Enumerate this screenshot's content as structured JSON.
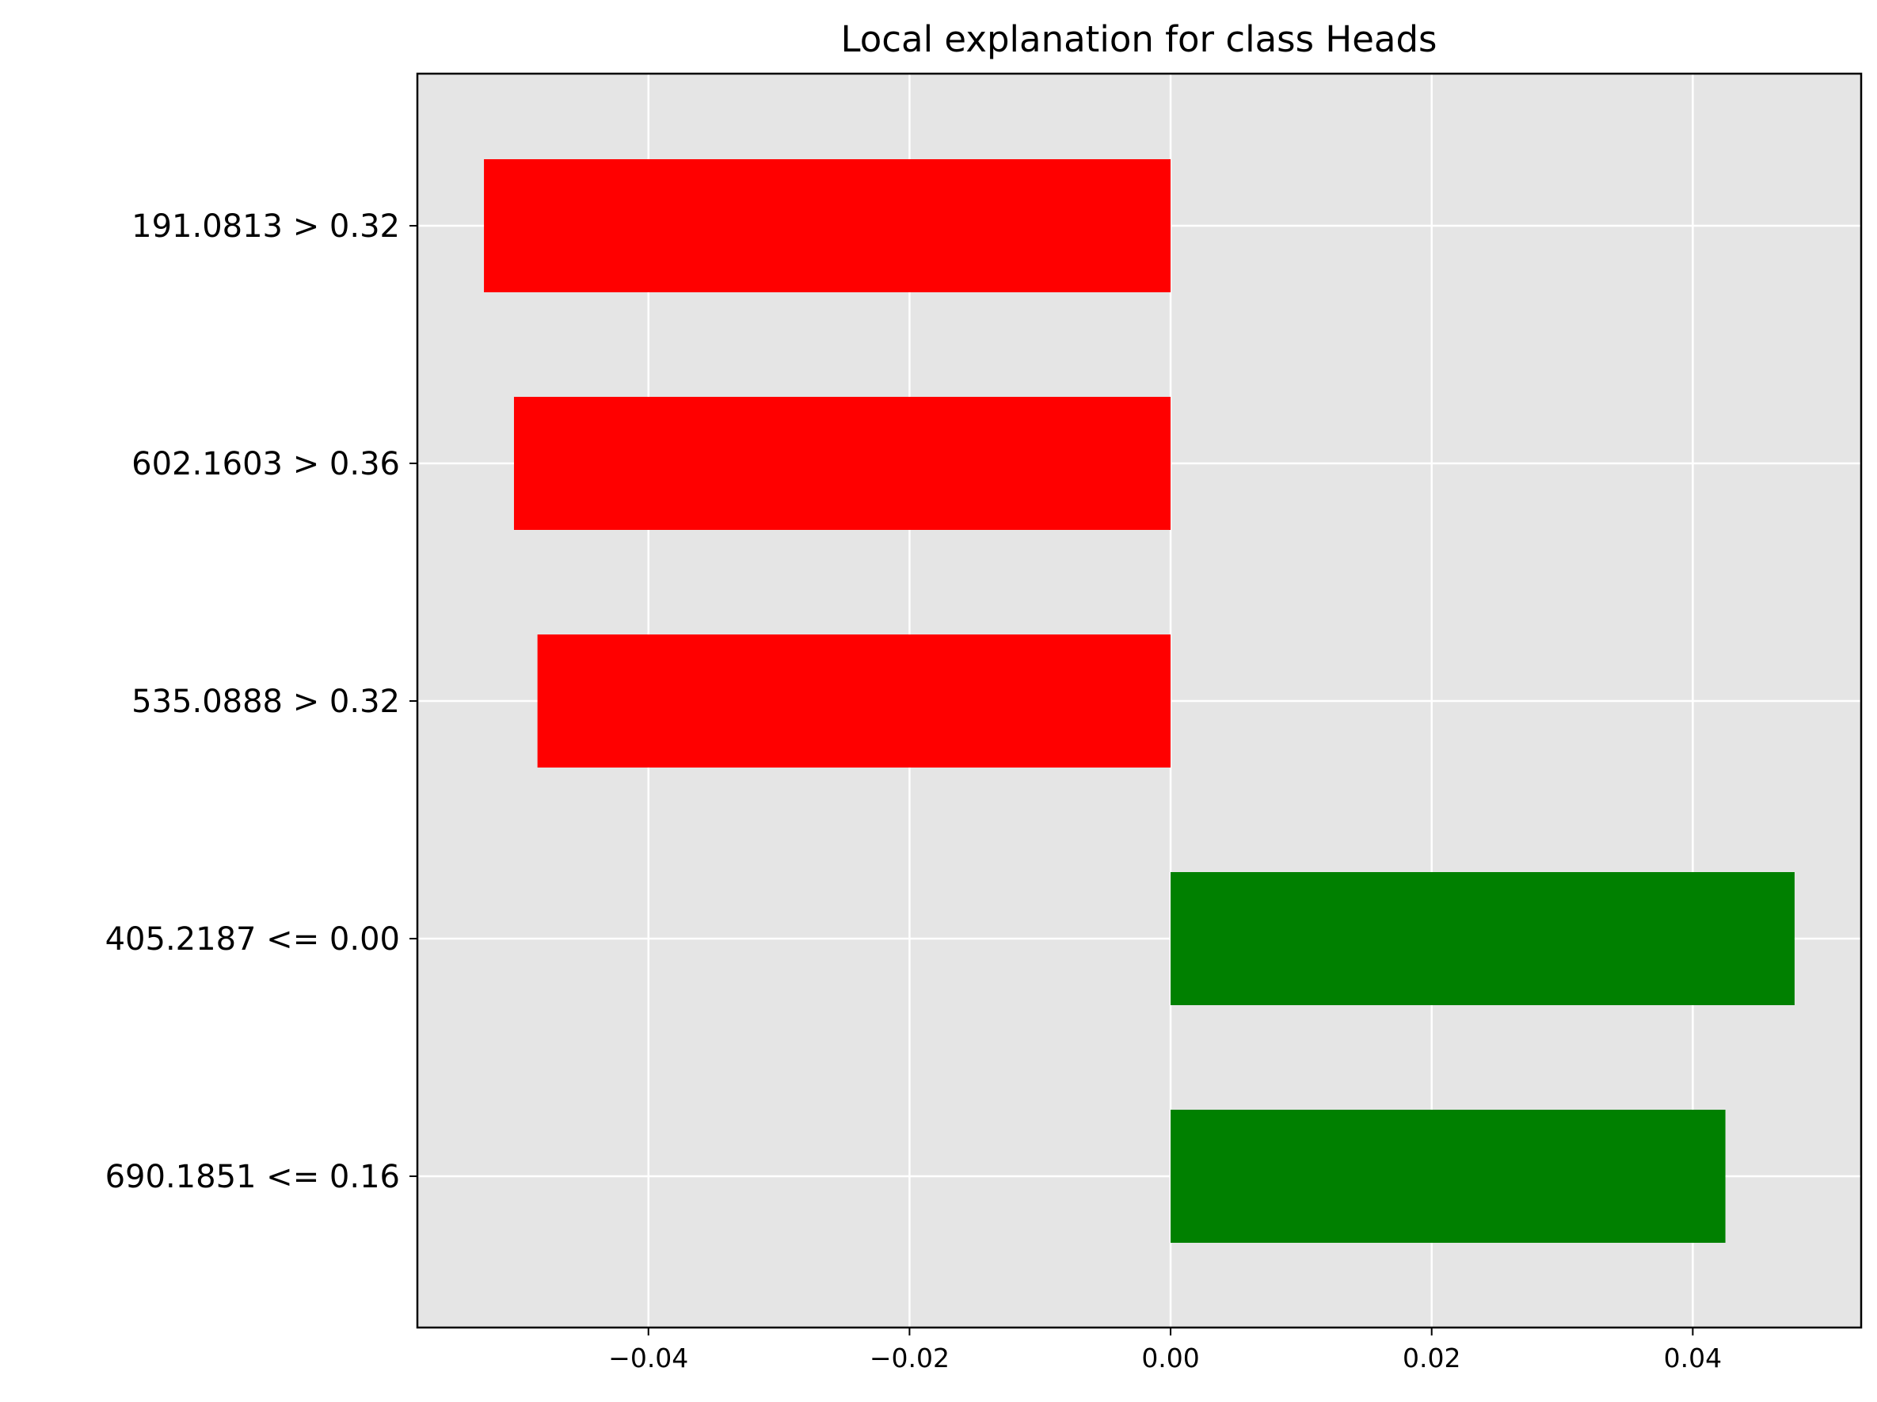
{
  "chart_data": {
    "type": "bar",
    "orientation": "horizontal",
    "title": "Local explanation for class Heads",
    "xlabel": "",
    "ylabel": "",
    "categories": [
      "191.0813 > 0.32",
      "602.1603 > 0.36",
      "535.0888 > 0.32",
      "405.2187 <= 0.00",
      "690.1851 <= 0.16"
    ],
    "values": [
      -0.0526,
      -0.0503,
      -0.0485,
      0.0478,
      0.0425
    ],
    "xlim": [
      -0.0577,
      0.0529
    ],
    "xticks": [
      -0.04,
      -0.02,
      0.0,
      0.02,
      0.04
    ],
    "xtick_labels": [
      "−0.04",
      "−0.02",
      "0.00",
      "0.02",
      "0.04"
    ],
    "grid": true,
    "colors": {
      "negative": "#ff0000",
      "positive": "#008000",
      "background": "#e5e5e5",
      "grid": "#ffffff"
    }
  }
}
